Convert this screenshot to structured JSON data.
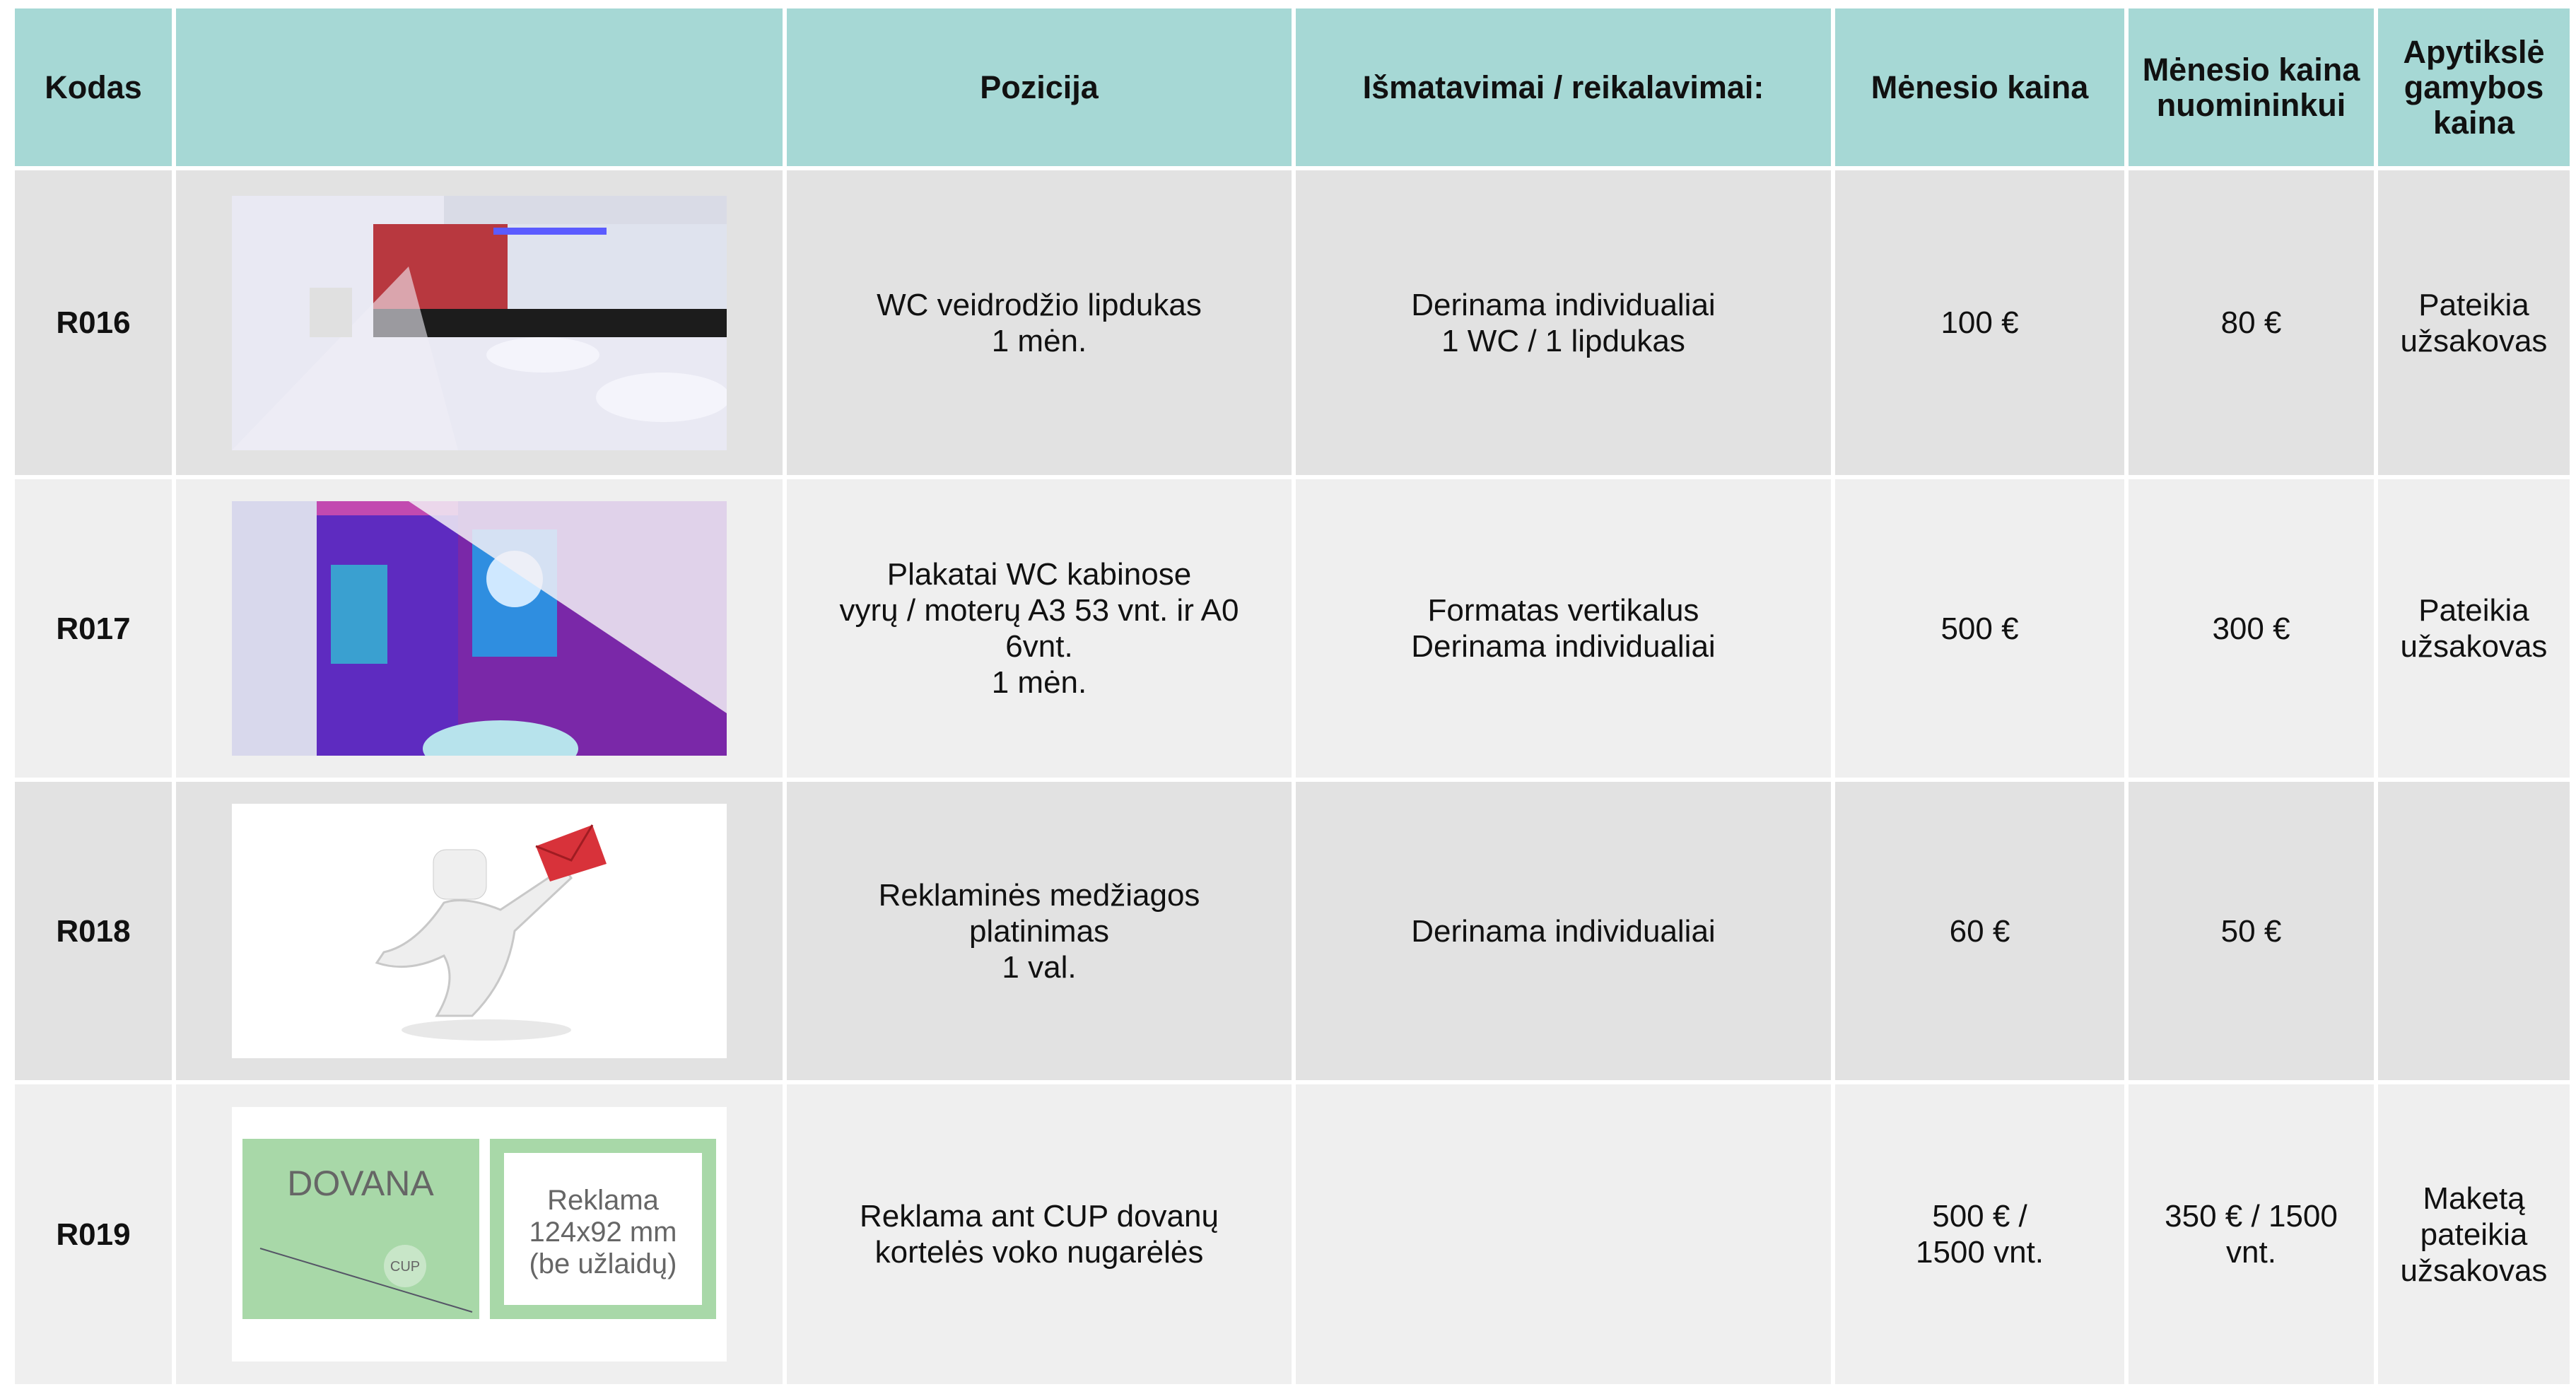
{
  "table": {
    "headers": [
      "Kodas",
      "Pozicija",
      "Išmatavimai / reikalavimai:",
      "Mėnesio kaina",
      "Mėnesio kaina nuomininkui",
      "Apytikslė gamybos kaina"
    ],
    "rows": [
      {
        "code": "R016",
        "position": [
          "WC veidrodžio lipdukas",
          "1 mėn."
        ],
        "requirements": [
          "Derinama individualiai",
          "1 WC / 1 lipdukas"
        ],
        "price": [
          "100 €"
        ],
        "tenant_price": [
          "80 €"
        ],
        "production": [
          "Pateikia",
          "užsakovas"
        ]
      },
      {
        "code": "R017",
        "position": [
          "Plakatai WC kabinose",
          "vyrų / moterų A3 53 vnt. ir A0",
          "6vnt.",
          "1 mėn."
        ],
        "requirements": [
          "Formatas vertikalus",
          "Derinama individualiai"
        ],
        "price": [
          "500 €"
        ],
        "tenant_price": [
          "300 €"
        ],
        "production": [
          "Pateikia",
          "užsakovas"
        ]
      },
      {
        "code": "R018",
        "position": [
          "Reklaminės medžiagos",
          "platinimas",
          "1 val."
        ],
        "requirements": [
          "Derinama individualiai"
        ],
        "price": [
          "60 €"
        ],
        "tenant_price": [
          "50 €"
        ]
      },
      {
        "code": "R019",
        "position": [
          "Reklama ant CUP dovanų",
          "kortelės voko nugarėlės"
        ],
        "price": [
          "500 € /",
          "1500 vnt."
        ],
        "tenant_price": [
          "350 € / 1500",
          "vnt."
        ],
        "production": [
          "Maketą",
          "pateikia",
          "užsakovas"
        ],
        "image_text": {
          "title": "DOVANA",
          "logo": "CUP",
          "note": [
            "Reklama",
            "124x92 mm",
            "(be užlaidų)"
          ]
        }
      }
    ]
  }
}
